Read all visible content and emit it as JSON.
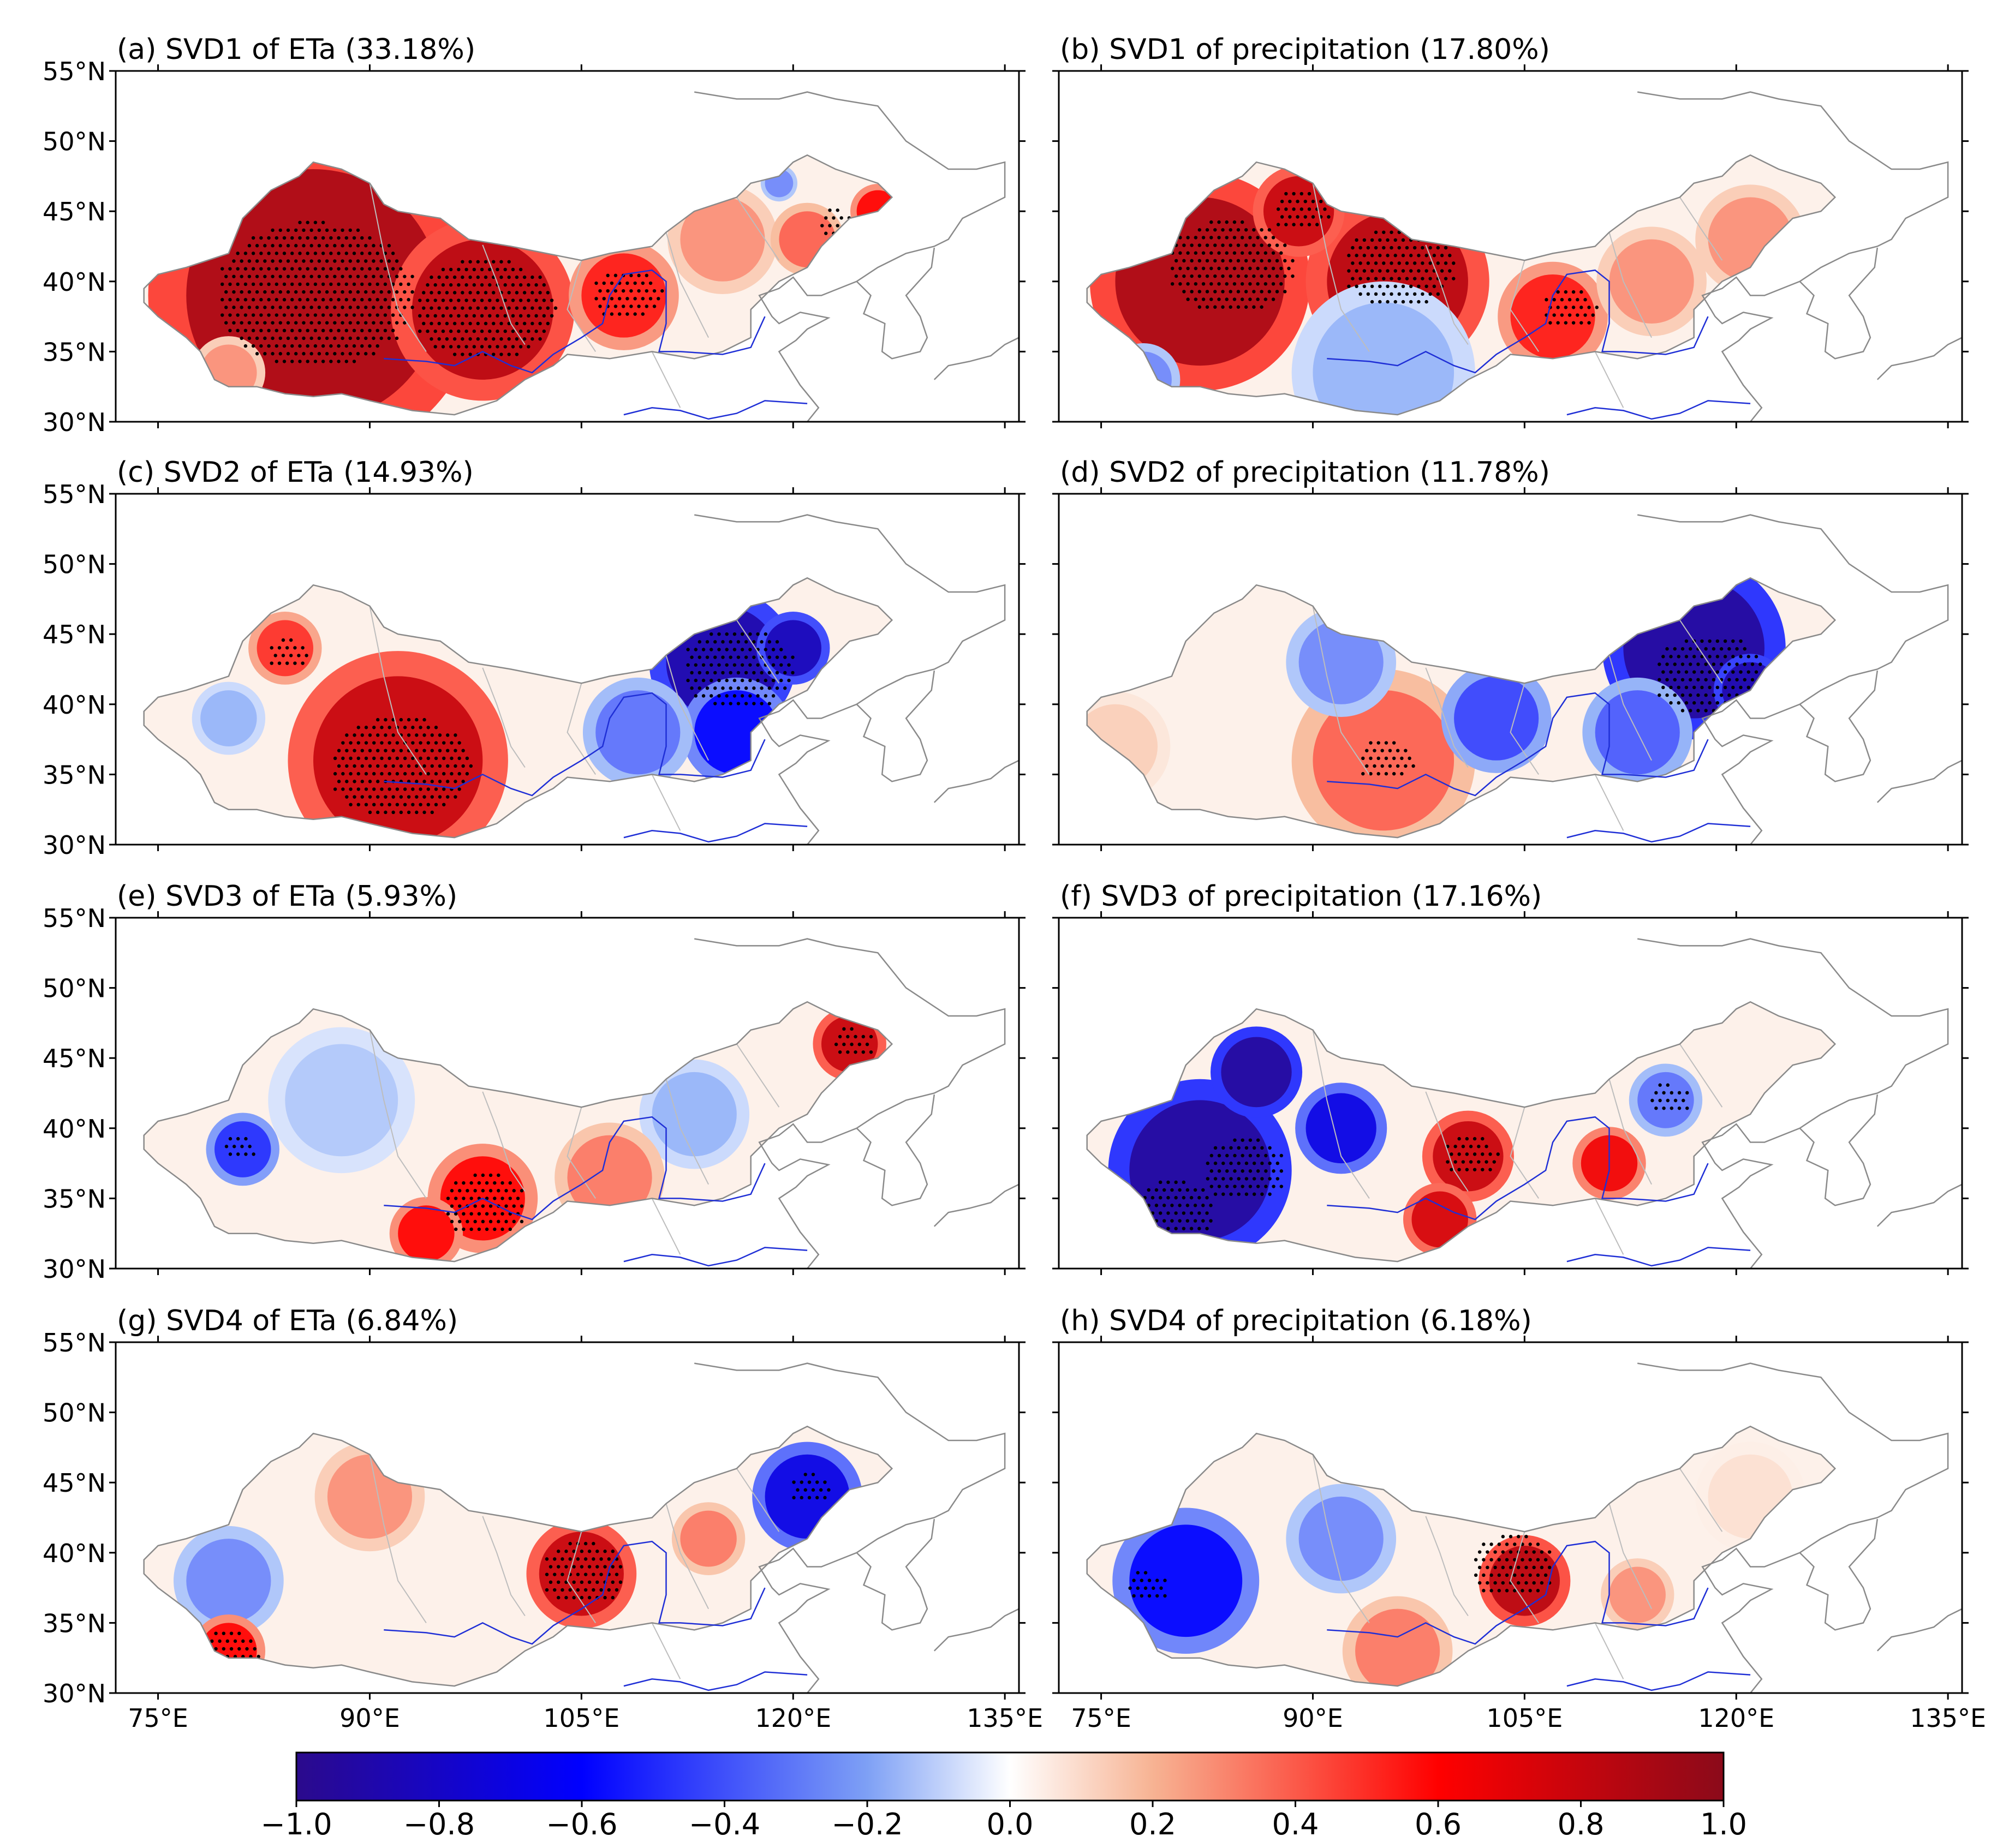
{
  "figure": {
    "panels": [
      {
        "label": "(a) SVD1 of ETa (33.18%)",
        "variable": "ETa",
        "mode": 1,
        "variance_percent": 33.18
      },
      {
        "label": "(b) SVD1 of precipitation (17.80%)",
        "variable": "precipitation",
        "mode": 1,
        "variance_percent": 17.8
      },
      {
        "label": "(c) SVD2 of ETa (14.93%)",
        "variable": "ETa",
        "mode": 2,
        "variance_percent": 14.93
      },
      {
        "label": "(d) SVD2 of precipitation (11.78%)",
        "variable": "precipitation",
        "mode": 2,
        "variance_percent": 11.78
      },
      {
        "label": "(e) SVD3 of ETa (5.93%)",
        "variable": "ETa",
        "mode": 3,
        "variance_percent": 5.93
      },
      {
        "label": "(f) SVD3 of precipitation (17.16%)",
        "variable": "precipitation",
        "mode": 3,
        "variance_percent": 17.16
      },
      {
        "label": "(g) SVD4 of ETa (6.84%)",
        "variable": "ETa",
        "mode": 4,
        "variance_percent": 6.84
      },
      {
        "label": "(h) SVD4 of precipitation (6.18%)",
        "variable": "precipitation",
        "mode": 4,
        "variance_percent": 6.18
      }
    ],
    "lat_ticks": [
      "30°N",
      "35°N",
      "40°N",
      "45°N",
      "50°N",
      "55°N"
    ],
    "lon_ticks": [
      "75°E",
      "90°E",
      "105°E",
      "120°E",
      "135°E"
    ],
    "lat_range": [
      30,
      55
    ],
    "lon_range": [
      72,
      136
    ],
    "colorbar": {
      "ticks": [
        "−1.0",
        "−0.8",
        "−0.6",
        "−0.4",
        "−0.2",
        "0.0",
        "0.2",
        "0.4",
        "0.6",
        "0.8",
        "1.0"
      ],
      "range": [
        -1.0,
        1.0
      ],
      "colormap": "seismic",
      "colors": [
        "#2b0a8c",
        "#0000ff",
        "#6b8cf0",
        "#ffffff",
        "#f5a07a",
        "#ff0000",
        "#8b0a1a"
      ]
    },
    "colors": {
      "river": "#1f2fd6",
      "coastline": "#8a8a8a",
      "province_border": "#bdbdbd",
      "significance_dots": "#000000"
    }
  }
}
